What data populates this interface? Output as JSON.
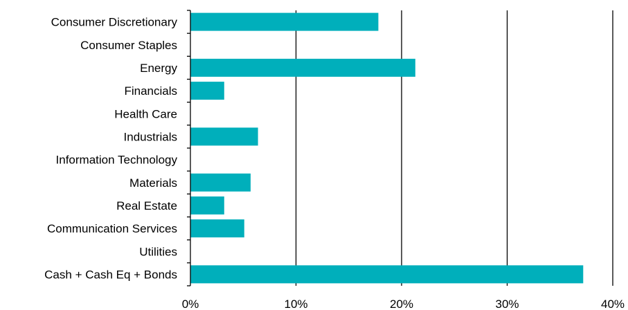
{
  "chart_data": {
    "type": "bar",
    "orientation": "horizontal",
    "categories": [
      "Consumer Discretionary",
      "Consumer Staples",
      "Energy",
      "Financials",
      "Health Care",
      "Industrials",
      "Information Technology",
      "Materials",
      "Real Estate",
      "Communication Services",
      "Utilities",
      "Cash + Cash Eq + Bonds"
    ],
    "values": [
      17.8,
      0,
      21.3,
      3.2,
      0,
      6.4,
      0,
      5.7,
      3.2,
      5.1,
      0,
      37.2
    ],
    "xlim": [
      0,
      40
    ],
    "xticks": [
      "0%",
      "10%",
      "20%",
      "30%",
      "40%"
    ],
    "grid": "vertical",
    "bar_color": "#00afbb",
    "title": "",
    "xlabel": "",
    "ylabel": ""
  }
}
